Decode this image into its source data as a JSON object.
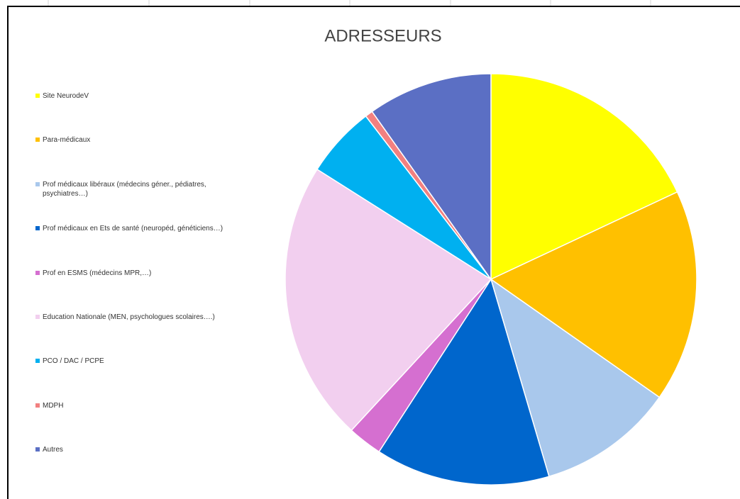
{
  "chart_data": {
    "type": "pie",
    "title": "ADRESSEURS",
    "categories": [
      "Site NeurodeV",
      "Para-médicaux",
      "Prof médicaux libéraux (médecins géner., pédiatres, psychiatres…)",
      "Prof médicaux en Ets de santé (neuropéd, généticiens…)",
      "Prof en ESMS (médecins MPR,…)",
      "Education Nationale (MEN, psychologues scolaires….)",
      "PCO / DAC / PCPE",
      "MDPH",
      "Autres"
    ],
    "values": [
      18,
      16.7,
      10.7,
      13.7,
      2.7,
      22.1,
      5.6,
      0.6,
      9.8
    ],
    "colors": [
      "#ffff00",
      "#ffc000",
      "#a9c8ec",
      "#0066cc",
      "#d56fd0",
      "#f2cfef",
      "#00b0f0",
      "#f28080",
      "#5b6fc4"
    ],
    "legend": "left"
  }
}
